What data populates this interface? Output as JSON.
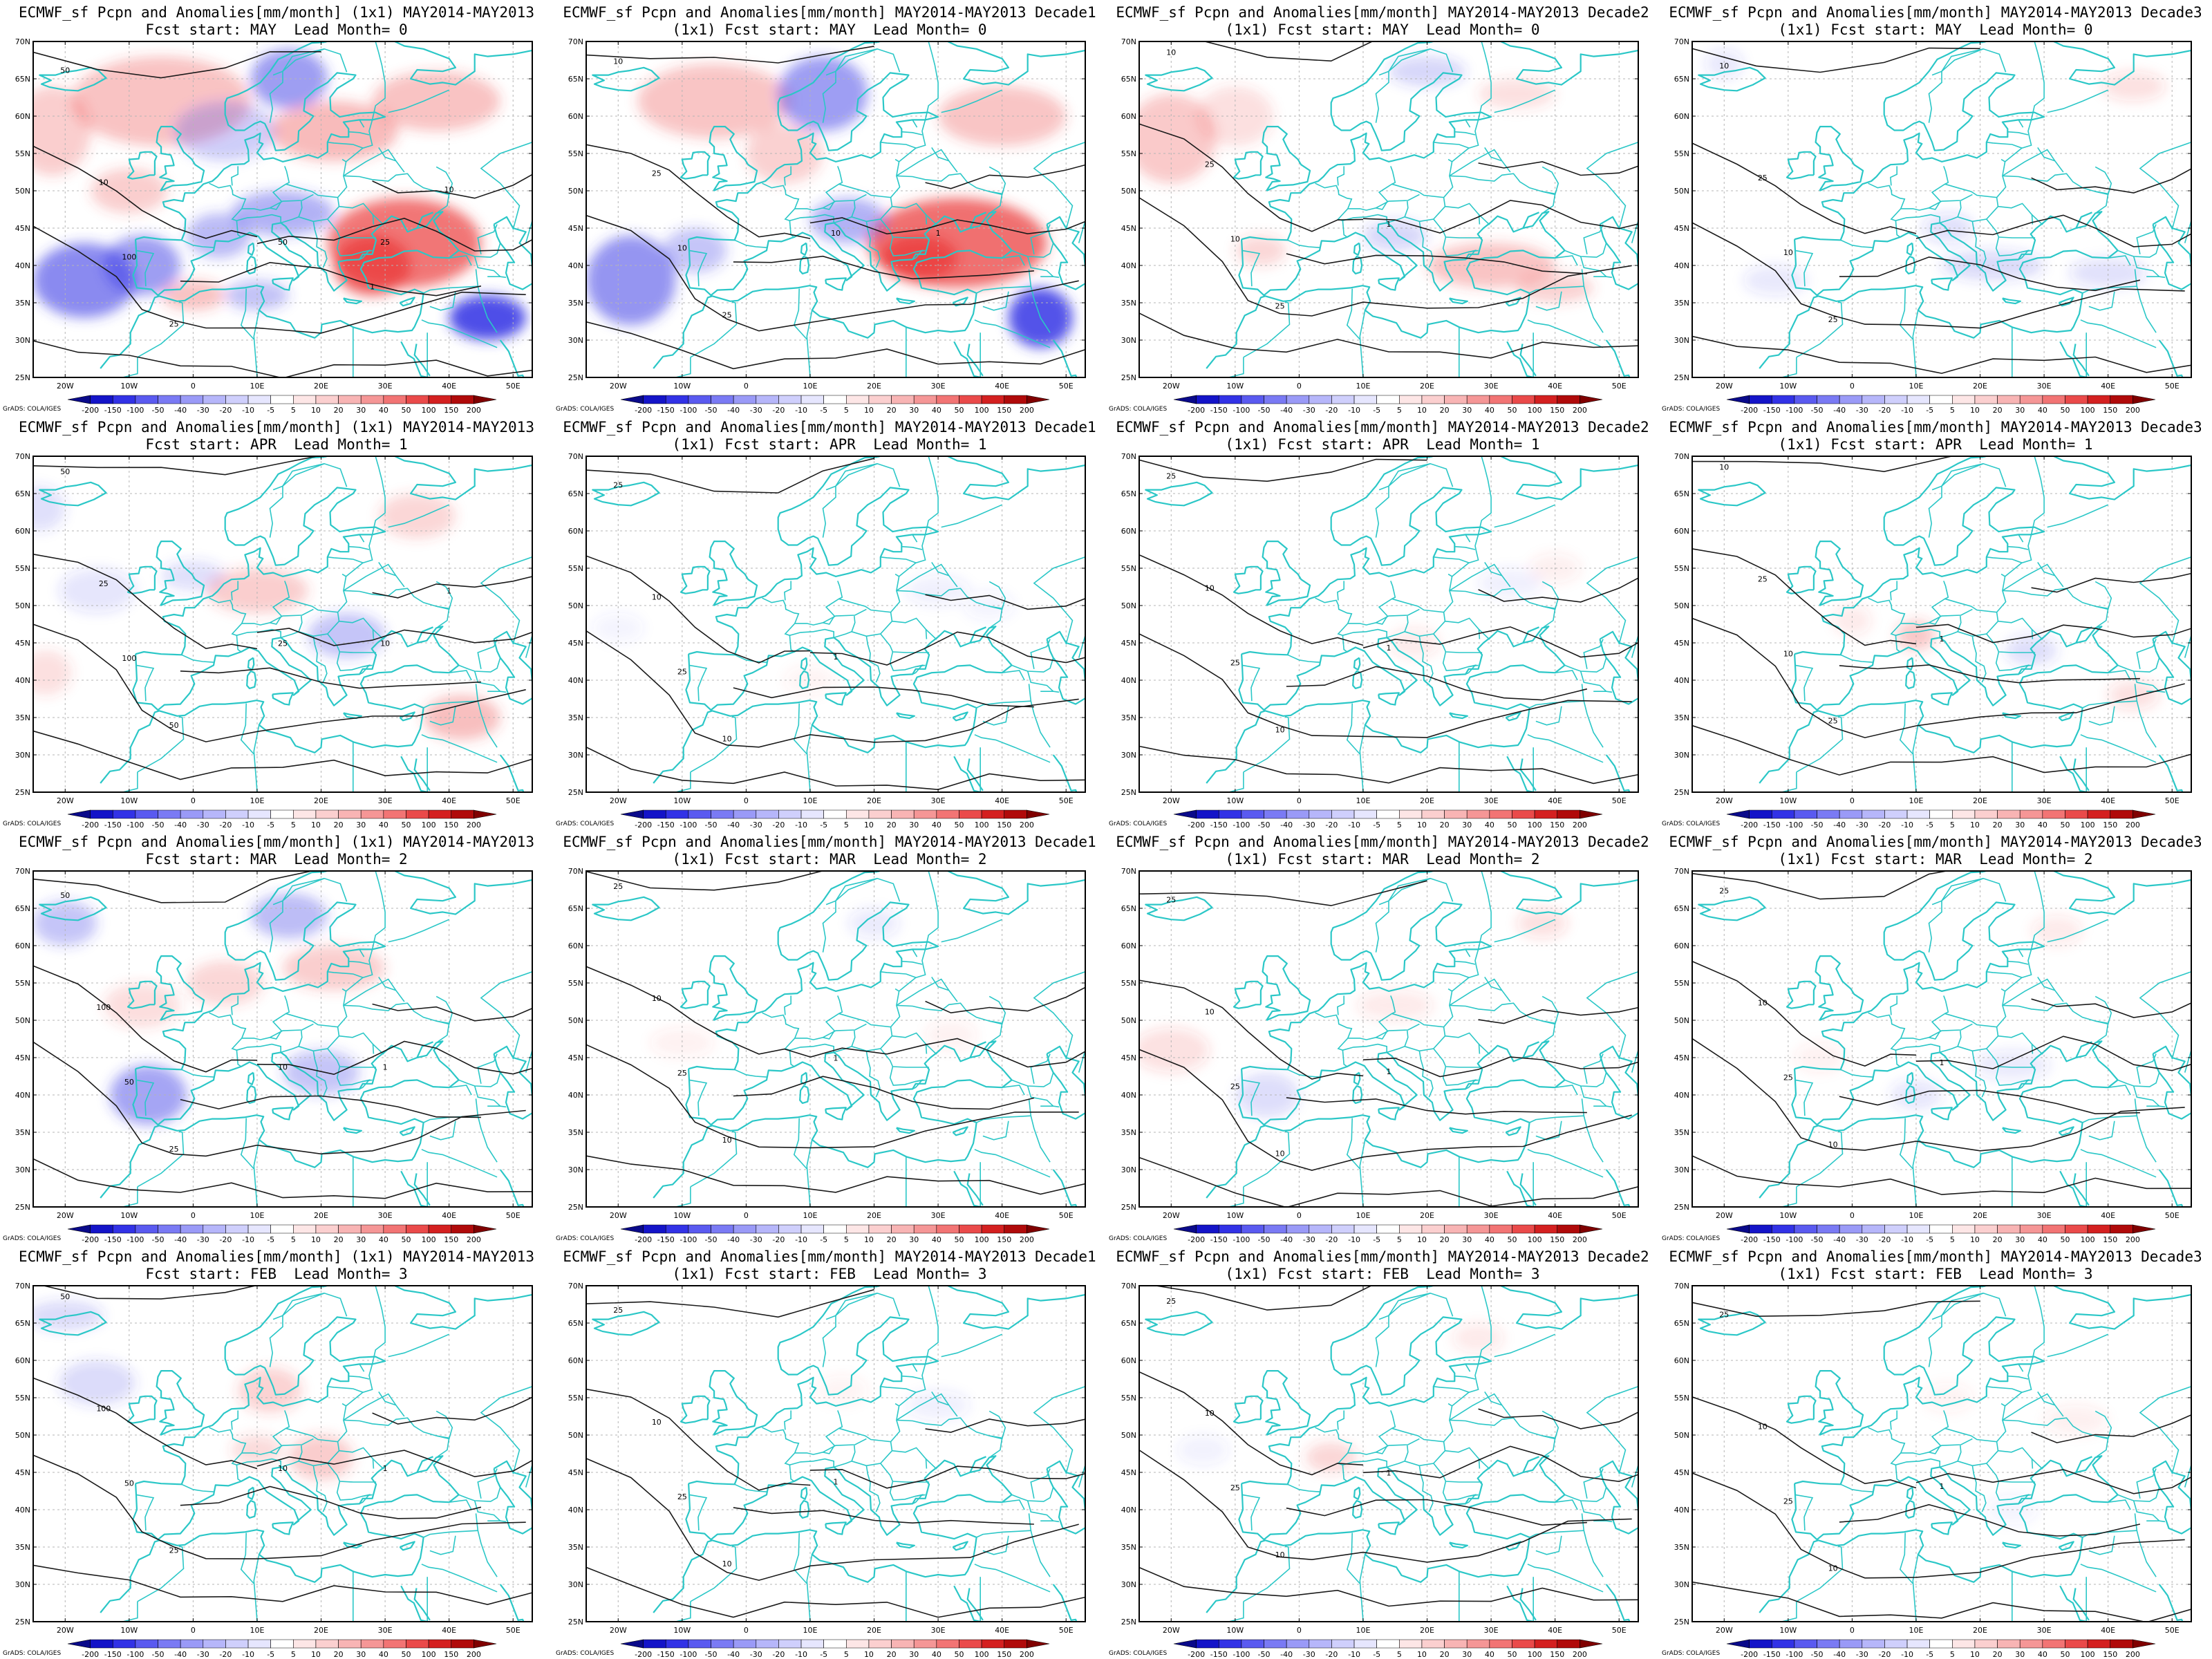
{
  "figure": {
    "panel_count": 16,
    "rows": 4,
    "cols": 4
  },
  "colors": {
    "coastline": "#2bc7c7",
    "contour": "#1a1a1a",
    "frame": "#000000",
    "grid_dash": "#b5b5b5"
  },
  "map": {
    "lat_labels": [
      "70N",
      "65N",
      "60N",
      "55N",
      "50N",
      "45N",
      "40N",
      "35N",
      "30N",
      "25N"
    ],
    "lon_labels": [
      "20W",
      "10W",
      "0",
      "10E",
      "20E",
      "30E",
      "40E",
      "50E"
    ],
    "lon_range": [
      -25,
      53
    ],
    "lat_range": [
      25,
      70
    ]
  },
  "colorbar": {
    "labels": [
      "-200",
      "-150",
      "-100",
      "-50",
      "-40",
      "-30",
      "-20",
      "-10",
      "-5",
      "5",
      "10",
      "20",
      "30",
      "40",
      "50",
      "100",
      "150",
      "200"
    ],
    "colors": [
      "#0a0a8a",
      "#1414c8",
      "#3232e6",
      "#5a5af0",
      "#7a7af4",
      "#9a9af7",
      "#b6b6fa",
      "#cfcffc",
      "#e6e6fe",
      "#ffffff",
      "#fde6e6",
      "#fbcfcf",
      "#f8b4b4",
      "#f59696",
      "#f27474",
      "#ea4a4a",
      "#d42020",
      "#b00a0a",
      "#800000"
    ],
    "credit": "GrADS: COLA/IGES"
  },
  "panels": [
    {
      "title_line1": "ECMWF_sf Pcpn and Anomalies[mm/month] (1x1) MAY2014-MAY2013",
      "title_line2": "Fcst start: MAY  Lead Month= 0",
      "anomaly_strength": 1.0,
      "contour_labels": [
        "50",
        "10",
        "100",
        "25",
        "50",
        "25",
        "10",
        "1"
      ]
    },
    {
      "title_line1": "ECMWF_sf Pcpn and Anomalies[mm/month] MAY2014-MAY2013 Decade1",
      "title_line2": "(1x1) Fcst start: MAY  Lead Month= 0",
      "anomaly_strength": 0.95,
      "contour_labels": [
        "10",
        "25",
        "10",
        "25",
        "10",
        "1"
      ]
    },
    {
      "title_line1": "ECMWF_sf Pcpn and Anomalies[mm/month] MAY2014-MAY2013 Decade2",
      "title_line2": "(1x1) Fcst start: MAY  Lead Month= 0",
      "anomaly_strength": 0.45,
      "contour_labels": [
        "10",
        "25",
        "10",
        "25",
        "1"
      ]
    },
    {
      "title_line1": "ECMWF_sf Pcpn and Anomalies[mm/month] MAY2014-MAY2013 Decade3",
      "title_line2": "(1x1) Fcst start: MAY  Lead Month= 0",
      "anomaly_strength": 0.3,
      "contour_labels": [
        "10",
        "25",
        "10",
        "25"
      ]
    },
    {
      "title_line1": "ECMWF_sf Pcpn and Anomalies[mm/month] (1x1) MAY2014-MAY2013",
      "title_line2": "Fcst start: APR  Lead Month= 1",
      "anomaly_strength": 0.55,
      "contour_labels": [
        "50",
        "25",
        "100",
        "50",
        "25",
        "10",
        "1"
      ]
    },
    {
      "title_line1": "ECMWF_sf Pcpn and Anomalies[mm/month] MAY2014-MAY2013 Decade1",
      "title_line2": "(1x1) Fcst start: APR  Lead Month= 1",
      "anomaly_strength": 0.12,
      "contour_labels": [
        "25",
        "10",
        "25",
        "10",
        "1"
      ]
    },
    {
      "title_line1": "ECMWF_sf Pcpn and Anomalies[mm/month] MAY2014-MAY2013 Decade2",
      "title_line2": "(1x1) Fcst start: APR  Lead Month= 1",
      "anomaly_strength": 0.14,
      "contour_labels": [
        "25",
        "10",
        "25",
        "10",
        "1"
      ]
    },
    {
      "title_line1": "ECMWF_sf Pcpn and Anomalies[mm/month] MAY2014-MAY2013 Decade3",
      "title_line2": "(1x1) Fcst start: APR  Lead Month= 1",
      "anomaly_strength": 0.22,
      "contour_labels": [
        "10",
        "25",
        "10",
        "25",
        "1"
      ]
    },
    {
      "title_line1": "ECMWF_sf Pcpn and Anomalies[mm/month] (1x1) MAY2014-MAY2013",
      "title_line2": "Fcst start: MAR  Lead Month= 2",
      "anomaly_strength": 0.6,
      "contour_labels": [
        "50",
        "100",
        "50",
        "25",
        "10",
        "1"
      ]
    },
    {
      "title_line1": "ECMWF_sf Pcpn and Anomalies[mm/month] MAY2014-MAY2013 Decade1",
      "title_line2": "(1x1) Fcst start: MAR  Lead Month= 2",
      "anomaly_strength": 0.15,
      "contour_labels": [
        "25",
        "10",
        "25",
        "10",
        "1"
      ]
    },
    {
      "title_line1": "ECMWF_sf Pcpn and Anomalies[mm/month] MAY2014-MAY2013 Decade2",
      "title_line2": "(1x1) Fcst start: MAR  Lead Month= 2",
      "anomaly_strength": 0.25,
      "contour_labels": [
        "25",
        "10",
        "25",
        "10",
        "1"
      ]
    },
    {
      "title_line1": "ECMWF_sf Pcpn and Anomalies[mm/month] MAY2014-MAY2013 Decade3",
      "title_line2": "(1x1) Fcst start: MAR  Lead Month= 2",
      "anomaly_strength": 0.18,
      "contour_labels": [
        "25",
        "10",
        "25",
        "10",
        "1"
      ]
    },
    {
      "title_line1": "ECMWF_sf Pcpn and Anomalies[mm/month] (1x1) MAY2014-MAY2013",
      "title_line2": "Fcst start: FEB  Lead Month= 3",
      "anomaly_strength": 0.35,
      "contour_labels": [
        "50",
        "100",
        "50",
        "25",
        "10",
        "1"
      ]
    },
    {
      "title_line1": "ECMWF_sf Pcpn and Anomalies[mm/month] MAY2014-MAY2013 Decade1",
      "title_line2": "(1x1) Fcst start: FEB  Lead Month= 3",
      "anomaly_strength": 0.1,
      "contour_labels": [
        "25",
        "10",
        "25",
        "10",
        "1"
      ]
    },
    {
      "title_line1": "ECMWF_sf Pcpn and Anomalies[mm/month] MAY2014-MAY2013 Decade2",
      "title_line2": "(1x1) Fcst start: FEB  Lead Month= 3",
      "anomaly_strength": 0.16,
      "contour_labels": [
        "25",
        "10",
        "25",
        "10",
        "1"
      ]
    },
    {
      "title_line1": "ECMWF_sf Pcpn and Anomalies[mm/month] MAY2014-MAY2013 Decade3",
      "title_line2": "(1x1) Fcst start: FEB  Lead Month= 3",
      "anomaly_strength": 0.12,
      "contour_labels": [
        "25",
        "10",
        "25",
        "10",
        "1"
      ]
    }
  ]
}
